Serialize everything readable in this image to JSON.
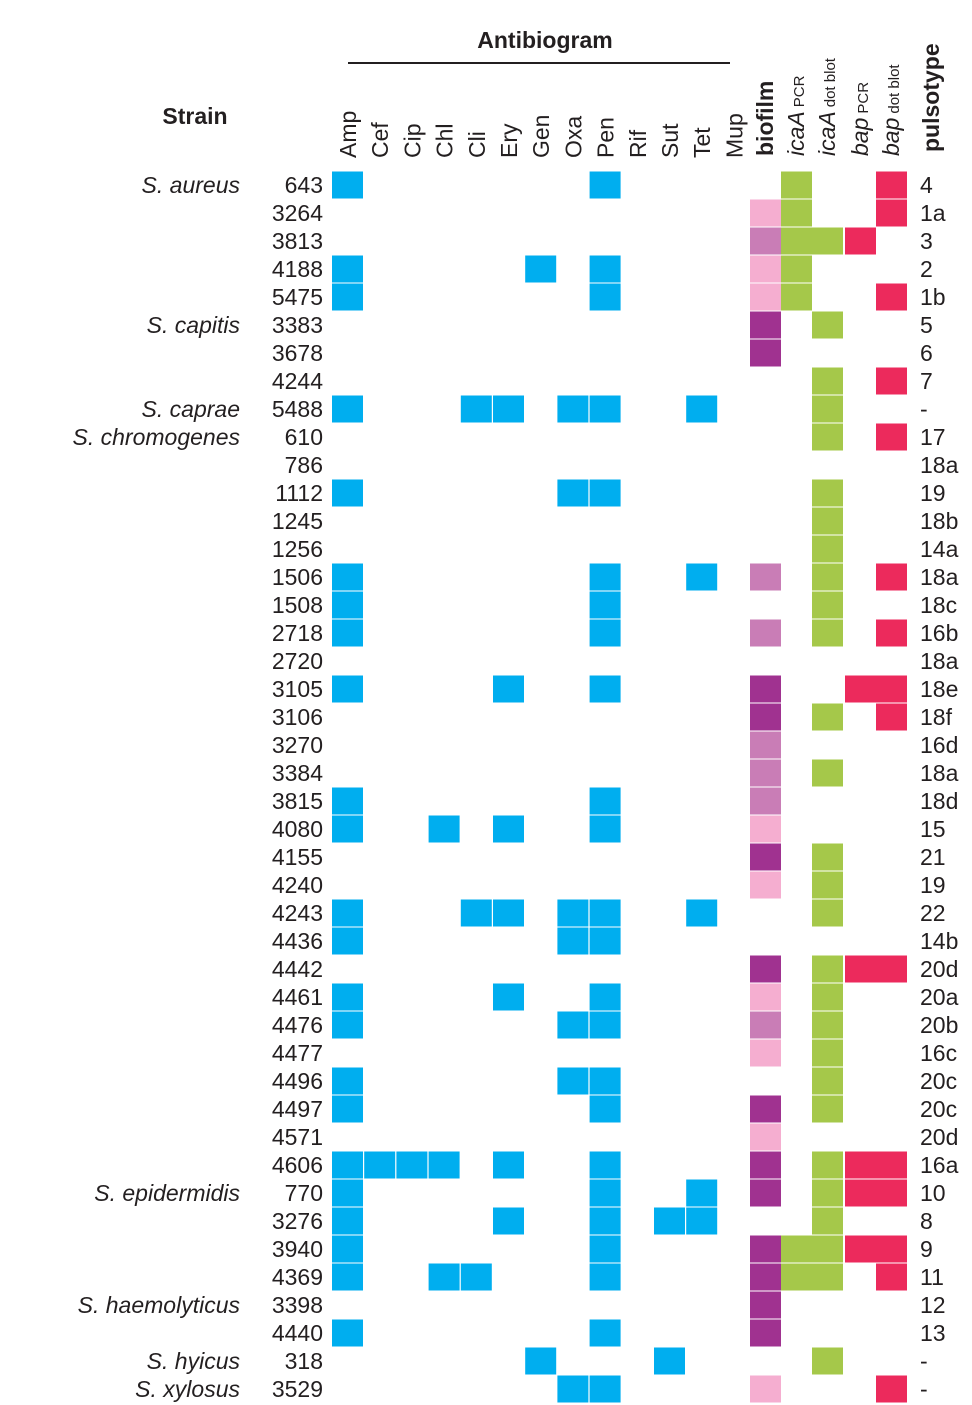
{
  "chart_data": {
    "type": "heatmap",
    "title": "Antibiogram",
    "row_header": "Strain",
    "antibiotics": [
      "Amp",
      "Cef",
      "Cip",
      "Chl",
      "Cli",
      "Ery",
      "Gen",
      "Oxa",
      "Pen",
      "Rif",
      "Sut",
      "Tet",
      "Mup"
    ],
    "detection_columns": [
      {
        "key": "biofilm",
        "label": "biofilm"
      },
      {
        "key": "icaA_pcr",
        "gene": "icaA",
        "method": "PCR"
      },
      {
        "key": "icaA_dot",
        "gene": "icaA",
        "method": "dot blot"
      },
      {
        "key": "bap_pcr",
        "gene": "bap",
        "method": "PCR"
      },
      {
        "key": "bap_dot",
        "gene": "bap",
        "method": "dot blot"
      }
    ],
    "pulsotype_header": "pulsotype",
    "colors": {
      "resistance": "#00aeef",
      "biofilm": {
        "light": "#f5aed0",
        "medium": "#c97db6",
        "strong": "#a03290"
      },
      "icaA": "#a5c84a",
      "bap": "#ec2a5c"
    },
    "rows": [
      {
        "species": "S. aureus",
        "strain": "643",
        "resistance": [
          "Amp",
          "Pen"
        ],
        "biofilm": null,
        "icaA_pcr": true,
        "icaA_dot": false,
        "bap_pcr": false,
        "bap_dot": true,
        "pulsotype": "4"
      },
      {
        "species": "",
        "strain": "3264",
        "resistance": [],
        "biofilm": "light",
        "icaA_pcr": true,
        "icaA_dot": false,
        "bap_pcr": false,
        "bap_dot": true,
        "pulsotype": "1a"
      },
      {
        "species": "",
        "strain": "3813",
        "resistance": [],
        "biofilm": "medium",
        "icaA_pcr": true,
        "icaA_dot": true,
        "bap_pcr": true,
        "bap_dot": false,
        "pulsotype": "3"
      },
      {
        "species": "",
        "strain": "4188",
        "resistance": [
          "Amp",
          "Gen",
          "Pen"
        ],
        "biofilm": "light",
        "icaA_pcr": true,
        "icaA_dot": false,
        "bap_pcr": false,
        "bap_dot": false,
        "pulsotype": "2"
      },
      {
        "species": "",
        "strain": "5475",
        "resistance": [
          "Amp",
          "Pen"
        ],
        "biofilm": "light",
        "icaA_pcr": true,
        "icaA_dot": false,
        "bap_pcr": false,
        "bap_dot": true,
        "pulsotype": "1b"
      },
      {
        "species": "S. capitis",
        "strain": "3383",
        "resistance": [],
        "biofilm": "strong",
        "icaA_pcr": false,
        "icaA_dot": true,
        "bap_pcr": false,
        "bap_dot": false,
        "pulsotype": "5"
      },
      {
        "species": "",
        "strain": "3678",
        "resistance": [],
        "biofilm": "strong",
        "icaA_pcr": false,
        "icaA_dot": false,
        "bap_pcr": false,
        "bap_dot": false,
        "pulsotype": "6"
      },
      {
        "species": "",
        "strain": "4244",
        "resistance": [],
        "biofilm": null,
        "icaA_pcr": false,
        "icaA_dot": true,
        "bap_pcr": false,
        "bap_dot": true,
        "pulsotype": "7"
      },
      {
        "species": "S. caprae",
        "strain": "5488",
        "resistance": [
          "Amp",
          "Cli",
          "Ery",
          "Oxa",
          "Pen",
          "Tet"
        ],
        "biofilm": null,
        "icaA_pcr": false,
        "icaA_dot": true,
        "bap_pcr": false,
        "bap_dot": false,
        "pulsotype": "-"
      },
      {
        "species": "S. chromogenes",
        "strain": "610",
        "resistance": [],
        "biofilm": null,
        "icaA_pcr": false,
        "icaA_dot": true,
        "bap_pcr": false,
        "bap_dot": true,
        "pulsotype": "17"
      },
      {
        "species": "",
        "strain": "786",
        "resistance": [],
        "biofilm": null,
        "icaA_pcr": false,
        "icaA_dot": false,
        "bap_pcr": false,
        "bap_dot": false,
        "pulsotype": "18a"
      },
      {
        "species": "",
        "strain": "1112",
        "resistance": [
          "Amp",
          "Oxa",
          "Pen"
        ],
        "biofilm": null,
        "icaA_pcr": false,
        "icaA_dot": true,
        "bap_pcr": false,
        "bap_dot": false,
        "pulsotype": "19"
      },
      {
        "species": "",
        "strain": "1245",
        "resistance": [],
        "biofilm": null,
        "icaA_pcr": false,
        "icaA_dot": true,
        "bap_pcr": false,
        "bap_dot": false,
        "pulsotype": "18b"
      },
      {
        "species": "",
        "strain": "1256",
        "resistance": [],
        "biofilm": null,
        "icaA_pcr": false,
        "icaA_dot": true,
        "bap_pcr": false,
        "bap_dot": false,
        "pulsotype": "14a"
      },
      {
        "species": "",
        "strain": "1506",
        "resistance": [
          "Amp",
          "Pen",
          "Tet"
        ],
        "biofilm": "medium",
        "icaA_pcr": false,
        "icaA_dot": true,
        "bap_pcr": false,
        "bap_dot": true,
        "pulsotype": "18a"
      },
      {
        "species": "",
        "strain": "1508",
        "resistance": [
          "Amp",
          "Pen"
        ],
        "biofilm": null,
        "icaA_pcr": false,
        "icaA_dot": true,
        "bap_pcr": false,
        "bap_dot": false,
        "pulsotype": "18c"
      },
      {
        "species": "",
        "strain": "2718",
        "resistance": [
          "Amp",
          "Pen"
        ],
        "biofilm": "medium",
        "icaA_pcr": false,
        "icaA_dot": true,
        "bap_pcr": false,
        "bap_dot": true,
        "pulsotype": "16b"
      },
      {
        "species": "",
        "strain": "2720",
        "resistance": [],
        "biofilm": null,
        "icaA_pcr": false,
        "icaA_dot": false,
        "bap_pcr": false,
        "bap_dot": false,
        "pulsotype": "18a"
      },
      {
        "species": "",
        "strain": "3105",
        "resistance": [
          "Amp",
          "Ery",
          "Pen"
        ],
        "biofilm": "strong",
        "icaA_pcr": false,
        "icaA_dot": false,
        "bap_pcr": true,
        "bap_dot": true,
        "pulsotype": "18e"
      },
      {
        "species": "",
        "strain": "3106",
        "resistance": [],
        "biofilm": "strong",
        "icaA_pcr": false,
        "icaA_dot": true,
        "bap_pcr": false,
        "bap_dot": true,
        "pulsotype": "18f"
      },
      {
        "species": "",
        "strain": "3270",
        "resistance": [],
        "biofilm": "medium",
        "icaA_pcr": false,
        "icaA_dot": false,
        "bap_pcr": false,
        "bap_dot": false,
        "pulsotype": "16d"
      },
      {
        "species": "",
        "strain": "3384",
        "resistance": [],
        "biofilm": "medium",
        "icaA_pcr": false,
        "icaA_dot": true,
        "bap_pcr": false,
        "bap_dot": false,
        "pulsotype": "18a"
      },
      {
        "species": "",
        "strain": "3815",
        "resistance": [
          "Amp",
          "Pen"
        ],
        "biofilm": "medium",
        "icaA_pcr": false,
        "icaA_dot": false,
        "bap_pcr": false,
        "bap_dot": false,
        "pulsotype": "18d"
      },
      {
        "species": "",
        "strain": "4080",
        "resistance": [
          "Amp",
          "Chl",
          "Ery",
          "Pen"
        ],
        "biofilm": "light",
        "icaA_pcr": false,
        "icaA_dot": false,
        "bap_pcr": false,
        "bap_dot": false,
        "pulsotype": "15"
      },
      {
        "species": "",
        "strain": "4155",
        "resistance": [],
        "biofilm": "strong",
        "icaA_pcr": false,
        "icaA_dot": true,
        "bap_pcr": false,
        "bap_dot": false,
        "pulsotype": "21"
      },
      {
        "species": "",
        "strain": "4240",
        "resistance": [],
        "biofilm": "light",
        "icaA_pcr": false,
        "icaA_dot": true,
        "bap_pcr": false,
        "bap_dot": false,
        "pulsotype": "19"
      },
      {
        "species": "",
        "strain": "4243",
        "resistance": [
          "Amp",
          "Cli",
          "Ery",
          "Oxa",
          "Pen",
          "Tet"
        ],
        "biofilm": null,
        "icaA_pcr": false,
        "icaA_dot": true,
        "bap_pcr": false,
        "bap_dot": false,
        "pulsotype": "22"
      },
      {
        "species": "",
        "strain": "4436",
        "resistance": [
          "Amp",
          "Oxa",
          "Pen"
        ],
        "biofilm": null,
        "icaA_pcr": false,
        "icaA_dot": false,
        "bap_pcr": false,
        "bap_dot": false,
        "pulsotype": "14b"
      },
      {
        "species": "",
        "strain": "4442",
        "resistance": [],
        "biofilm": "strong",
        "icaA_pcr": false,
        "icaA_dot": true,
        "bap_pcr": true,
        "bap_dot": true,
        "pulsotype": "20d"
      },
      {
        "species": "",
        "strain": "4461",
        "resistance": [
          "Amp",
          "Ery",
          "Pen"
        ],
        "biofilm": "light",
        "icaA_pcr": false,
        "icaA_dot": true,
        "bap_pcr": false,
        "bap_dot": false,
        "pulsotype": "20a"
      },
      {
        "species": "",
        "strain": "4476",
        "resistance": [
          "Amp",
          "Oxa",
          "Pen"
        ],
        "biofilm": "medium",
        "icaA_pcr": false,
        "icaA_dot": true,
        "bap_pcr": false,
        "bap_dot": false,
        "pulsotype": "20b"
      },
      {
        "species": "",
        "strain": "4477",
        "resistance": [],
        "biofilm": "light",
        "icaA_pcr": false,
        "icaA_dot": true,
        "bap_pcr": false,
        "bap_dot": false,
        "pulsotype": "16c"
      },
      {
        "species": "",
        "strain": "4496",
        "resistance": [
          "Amp",
          "Oxa",
          "Pen"
        ],
        "biofilm": null,
        "icaA_pcr": false,
        "icaA_dot": true,
        "bap_pcr": false,
        "bap_dot": false,
        "pulsotype": "20c"
      },
      {
        "species": "",
        "strain": "4497",
        "resistance": [
          "Amp",
          "Pen"
        ],
        "biofilm": "strong",
        "icaA_pcr": false,
        "icaA_dot": true,
        "bap_pcr": false,
        "bap_dot": false,
        "pulsotype": "20c"
      },
      {
        "species": "",
        "strain": "4571",
        "resistance": [],
        "biofilm": "light",
        "icaA_pcr": false,
        "icaA_dot": false,
        "bap_pcr": false,
        "bap_dot": false,
        "pulsotype": "20d"
      },
      {
        "species": "",
        "strain": "4606",
        "resistance": [
          "Amp",
          "Cef",
          "Cip",
          "Chl",
          "Ery",
          "Pen"
        ],
        "biofilm": "strong",
        "icaA_pcr": false,
        "icaA_dot": true,
        "bap_pcr": true,
        "bap_dot": true,
        "pulsotype": "16a"
      },
      {
        "species": "S. epidermidis",
        "strain": "770",
        "resistance": [
          "Amp",
          "Pen",
          "Tet"
        ],
        "biofilm": "strong",
        "icaA_pcr": false,
        "icaA_dot": true,
        "bap_pcr": true,
        "bap_dot": true,
        "pulsotype": "10"
      },
      {
        "species": "",
        "strain": "3276",
        "resistance": [
          "Amp",
          "Ery",
          "Pen",
          "Sut",
          "Tet"
        ],
        "biofilm": null,
        "icaA_pcr": false,
        "icaA_dot": true,
        "bap_pcr": false,
        "bap_dot": false,
        "pulsotype": "8"
      },
      {
        "species": "",
        "strain": "3940",
        "resistance": [
          "Amp",
          "Pen"
        ],
        "biofilm": "strong",
        "icaA_pcr": true,
        "icaA_dot": true,
        "bap_pcr": true,
        "bap_dot": true,
        "pulsotype": "9"
      },
      {
        "species": "",
        "strain": "4369",
        "resistance": [
          "Amp",
          "Chl",
          "Cli",
          "Pen"
        ],
        "biofilm": "strong",
        "icaA_pcr": true,
        "icaA_dot": true,
        "bap_pcr": false,
        "bap_dot": true,
        "pulsotype": "11"
      },
      {
        "species": "S. haemolyticus",
        "strain": "3398",
        "resistance": [],
        "biofilm": "strong",
        "icaA_pcr": false,
        "icaA_dot": false,
        "bap_pcr": false,
        "bap_dot": false,
        "pulsotype": "12"
      },
      {
        "species": "",
        "strain": "4440",
        "resistance": [
          "Amp",
          "Pen"
        ],
        "biofilm": "strong",
        "icaA_pcr": false,
        "icaA_dot": false,
        "bap_pcr": false,
        "bap_dot": false,
        "pulsotype": "13"
      },
      {
        "species": "S. hyicus",
        "strain": "318",
        "resistance": [
          "Gen",
          "Sut"
        ],
        "biofilm": null,
        "icaA_pcr": false,
        "icaA_dot": true,
        "bap_pcr": false,
        "bap_dot": false,
        "pulsotype": "-"
      },
      {
        "species": "S. xylosus",
        "strain": "3529",
        "resistance": [
          "Oxa",
          "Pen"
        ],
        "biofilm": "light",
        "icaA_pcr": false,
        "icaA_dot": false,
        "bap_pcr": false,
        "bap_dot": true,
        "pulsotype": "-"
      }
    ]
  }
}
